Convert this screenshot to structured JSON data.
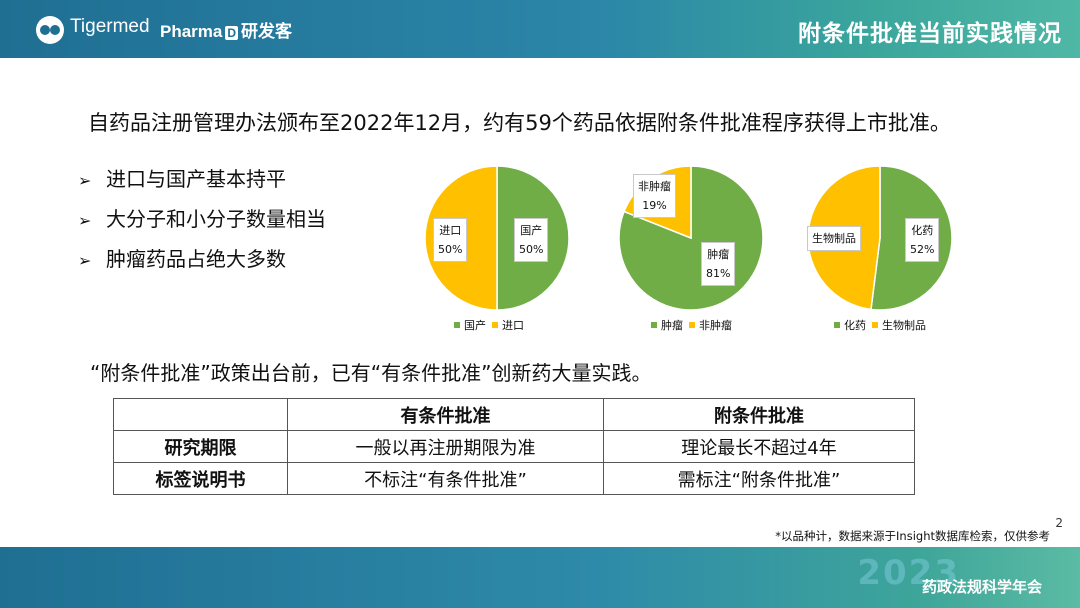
{
  "header": {
    "brand1": "Tigermed",
    "brand2_left": "Pharma",
    "brand2_badge": "D",
    "brand2_right": "研发客",
    "title": "附条件批准当前实践情况"
  },
  "lead": "自药品注册管理办法颁布至2022年12月，约有59个药品依据附条件批准程序获得上市批准。",
  "bullets": [
    "进口与国产基本持平",
    "大分子和小分子数量相当",
    "肿瘤药品占绝大多数"
  ],
  "bullet_mark": "➢",
  "chart_data": [
    {
      "type": "pie",
      "series": [
        {
          "name": "国产",
          "value": 50,
          "label": "50%",
          "color": "#70ad47"
        },
        {
          "name": "进口",
          "value": 50,
          "label": "50%",
          "color": "#ffc000"
        }
      ]
    },
    {
      "type": "pie",
      "series": [
        {
          "name": "肿瘤",
          "value": 81,
          "label": "81%",
          "color": "#70ad47"
        },
        {
          "name": "非肿瘤",
          "value": 19,
          "label": "19%",
          "color": "#ffc000"
        }
      ]
    },
    {
      "type": "pie",
      "series": [
        {
          "name": "化药",
          "value": 52,
          "label": "52%",
          "color": "#70ad47"
        },
        {
          "name": "生物制品",
          "value": 48,
          "label": "",
          "color": "#ffc000"
        }
      ]
    }
  ],
  "subheading": "“附条件批准”政策出台前，已有“有条件批准”创新药大量实践。",
  "table": {
    "headers": [
      "",
      "有条件批准",
      "附条件批准"
    ],
    "rows": [
      [
        "研究期限",
        "一般以再注册期限为准",
        "理论最长不超过4年"
      ],
      [
        "标签说明书",
        "不标注“有条件批准”",
        "需标注“附条件批准”"
      ]
    ]
  },
  "footnote": "*以品种计，数据来源于Insight数据库检索，仅供参考",
  "page_number": "2",
  "footer": {
    "year": "2023",
    "conference": "药政法规科学年会"
  }
}
